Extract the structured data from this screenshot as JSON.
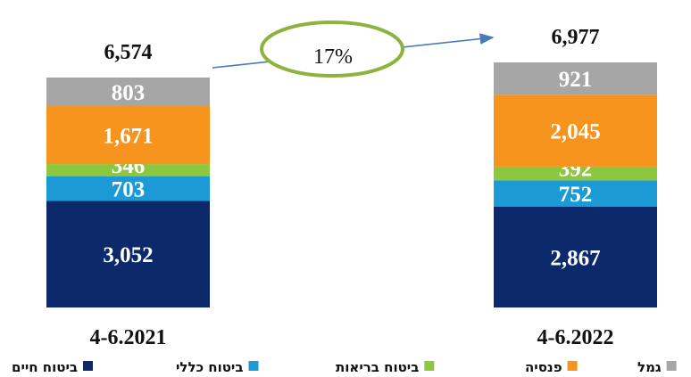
{
  "chart_data": {
    "type": "bar",
    "stacked": true,
    "categories": [
      "4-6.2021",
      "4-6.2022"
    ],
    "totals": [
      "6,574",
      "6,977"
    ],
    "series": [
      {
        "name": "ביטוח חיים",
        "color": "#0c2a6b",
        "values": [
          3052,
          2867
        ],
        "labels": [
          "3,052",
          "2,867"
        ]
      },
      {
        "name": "ביטוח כללי",
        "color": "#1b9ad6",
        "values": [
          703,
          752
        ],
        "labels": [
          "703",
          "752"
        ]
      },
      {
        "name": "ביטוח בריאות",
        "color": "#8dc63f",
        "values": [
          346,
          392
        ],
        "labels": [
          "346",
          "392"
        ]
      },
      {
        "name": "פנסיה",
        "color": "#f7941d",
        "values": [
          1671,
          2045
        ],
        "labels": [
          "1,671",
          "2,045"
        ]
      },
      {
        "name": "גמל",
        "color": "#a6a6a6",
        "values": [
          803,
          921
        ],
        "labels": [
          "803",
          "921"
        ]
      }
    ],
    "growth_annotation": "17%",
    "legend_position": "bottom",
    "grid": false,
    "title": "",
    "xlabel": "",
    "ylabel": ""
  }
}
